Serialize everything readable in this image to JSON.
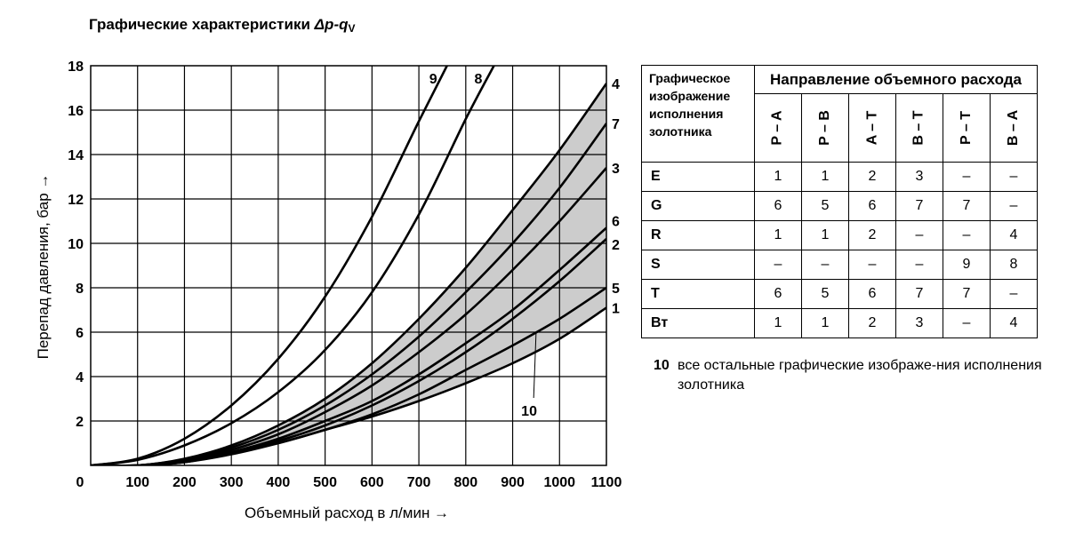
{
  "title": {
    "text": "Графические характеристики ",
    "symbol": "Δp-q",
    "subscript": "V"
  },
  "chart_data": {
    "type": "line",
    "xlabel": "Объемный расход в л/мин →",
    "ylabel": "Перепад давления, бар →",
    "xlim": [
      0,
      1100
    ],
    "ylim": [
      0,
      18
    ],
    "x_ticks": [
      0,
      100,
      200,
      300,
      400,
      500,
      600,
      700,
      800,
      900,
      1000,
      1100
    ],
    "y_ticks": [
      2,
      4,
      6,
      8,
      10,
      12,
      14,
      16,
      18
    ],
    "grid": true,
    "series": [
      {
        "name": "9",
        "x": [
          0,
          100,
          200,
          300,
          400,
          500,
          600,
          700,
          760
        ],
        "y": [
          0,
          0.3,
          1.2,
          2.7,
          4.8,
          7.6,
          11.2,
          15.5,
          18.0
        ]
      },
      {
        "name": "8",
        "x": [
          0,
          100,
          200,
          300,
          400,
          500,
          600,
          700,
          800,
          860
        ],
        "y": [
          0,
          0.25,
          0.9,
          1.9,
          3.3,
          5.2,
          7.8,
          11.3,
          15.6,
          18.0
        ]
      },
      {
        "name": "4",
        "x": [
          100,
          200,
          300,
          400,
          500,
          600,
          700,
          800,
          900,
          1000,
          1100
        ],
        "y": [
          0,
          0.3,
          0.9,
          1.8,
          3.0,
          4.6,
          6.6,
          8.9,
          11.5,
          14.2,
          17.2
        ]
      },
      {
        "name": "7",
        "x": [
          100,
          200,
          300,
          400,
          500,
          600,
          700,
          800,
          900,
          1000,
          1100
        ],
        "y": [
          0,
          0.25,
          0.8,
          1.6,
          2.7,
          4.1,
          5.8,
          7.8,
          10.0,
          12.5,
          15.4
        ]
      },
      {
        "name": "3",
        "x": [
          100,
          200,
          300,
          400,
          500,
          600,
          700,
          800,
          900,
          1000,
          1100
        ],
        "y": [
          0,
          0.2,
          0.7,
          1.4,
          2.4,
          3.6,
          5.1,
          6.8,
          8.8,
          11.0,
          13.4
        ]
      },
      {
        "name": "6",
        "x": [
          100,
          200,
          300,
          400,
          500,
          600,
          700,
          800,
          900,
          1000,
          1100
        ],
        "y": [
          0,
          0.15,
          0.6,
          1.2,
          2.0,
          2.9,
          4.1,
          5.5,
          7.0,
          8.8,
          10.7
        ]
      },
      {
        "name": "2",
        "x": [
          100,
          200,
          300,
          400,
          500,
          600,
          700,
          800,
          900,
          1000,
          1100
        ],
        "y": [
          0,
          0.15,
          0.55,
          1.1,
          1.8,
          2.7,
          3.8,
          5.1,
          6.6,
          8.3,
          10.2
        ]
      },
      {
        "name": "5",
        "x": [
          100,
          200,
          300,
          400,
          500,
          600,
          700,
          800,
          900,
          1000,
          1100
        ],
        "y": [
          0,
          0.15,
          0.5,
          1.0,
          1.6,
          2.3,
          3.2,
          4.3,
          5.4,
          6.6,
          8.0
        ]
      },
      {
        "name": "1",
        "x": [
          100,
          200,
          300,
          400,
          500,
          600,
          700,
          800,
          900,
          1000,
          1100
        ],
        "y": [
          0,
          0.25,
          0.6,
          1.0,
          1.6,
          2.2,
          2.9,
          3.7,
          4.6,
          5.7,
          7.1
        ]
      }
    ],
    "shaded_band": {
      "upper": "4",
      "lower": "1",
      "label": "10",
      "annotation": {
        "x": 950,
        "y": 6.0,
        "label_x": 960,
        "label_y": 2.4
      }
    }
  },
  "table": {
    "corner_lines": [
      "Графическое",
      "изображение",
      "исполнения",
      "золотника"
    ],
    "direction_header": "Направление объемного расхода",
    "directions": [
      "P – A",
      "P – B",
      "A – T",
      "B – T",
      "P – T",
      "B – A"
    ],
    "rows": [
      {
        "label": "E",
        "cells": [
          "1",
          "1",
          "2",
          "3",
          "–",
          "–"
        ]
      },
      {
        "label": "G",
        "cells": [
          "6",
          "5",
          "6",
          "7",
          "7",
          "–"
        ]
      },
      {
        "label": "R",
        "cells": [
          "1",
          "1",
          "2",
          "–",
          "–",
          "4"
        ]
      },
      {
        "label": "S",
        "cells": [
          "–",
          "–",
          "–",
          "–",
          "9",
          "8"
        ]
      },
      {
        "label": "T",
        "cells": [
          "6",
          "5",
          "6",
          "7",
          "7",
          "–"
        ]
      },
      {
        "label": "Вт",
        "cells": [
          "1",
          "1",
          "2",
          "3",
          "–",
          "4"
        ]
      }
    ]
  },
  "note": {
    "number": "10",
    "text": "все остальные графические изображе-ния исполнения золотника"
  }
}
